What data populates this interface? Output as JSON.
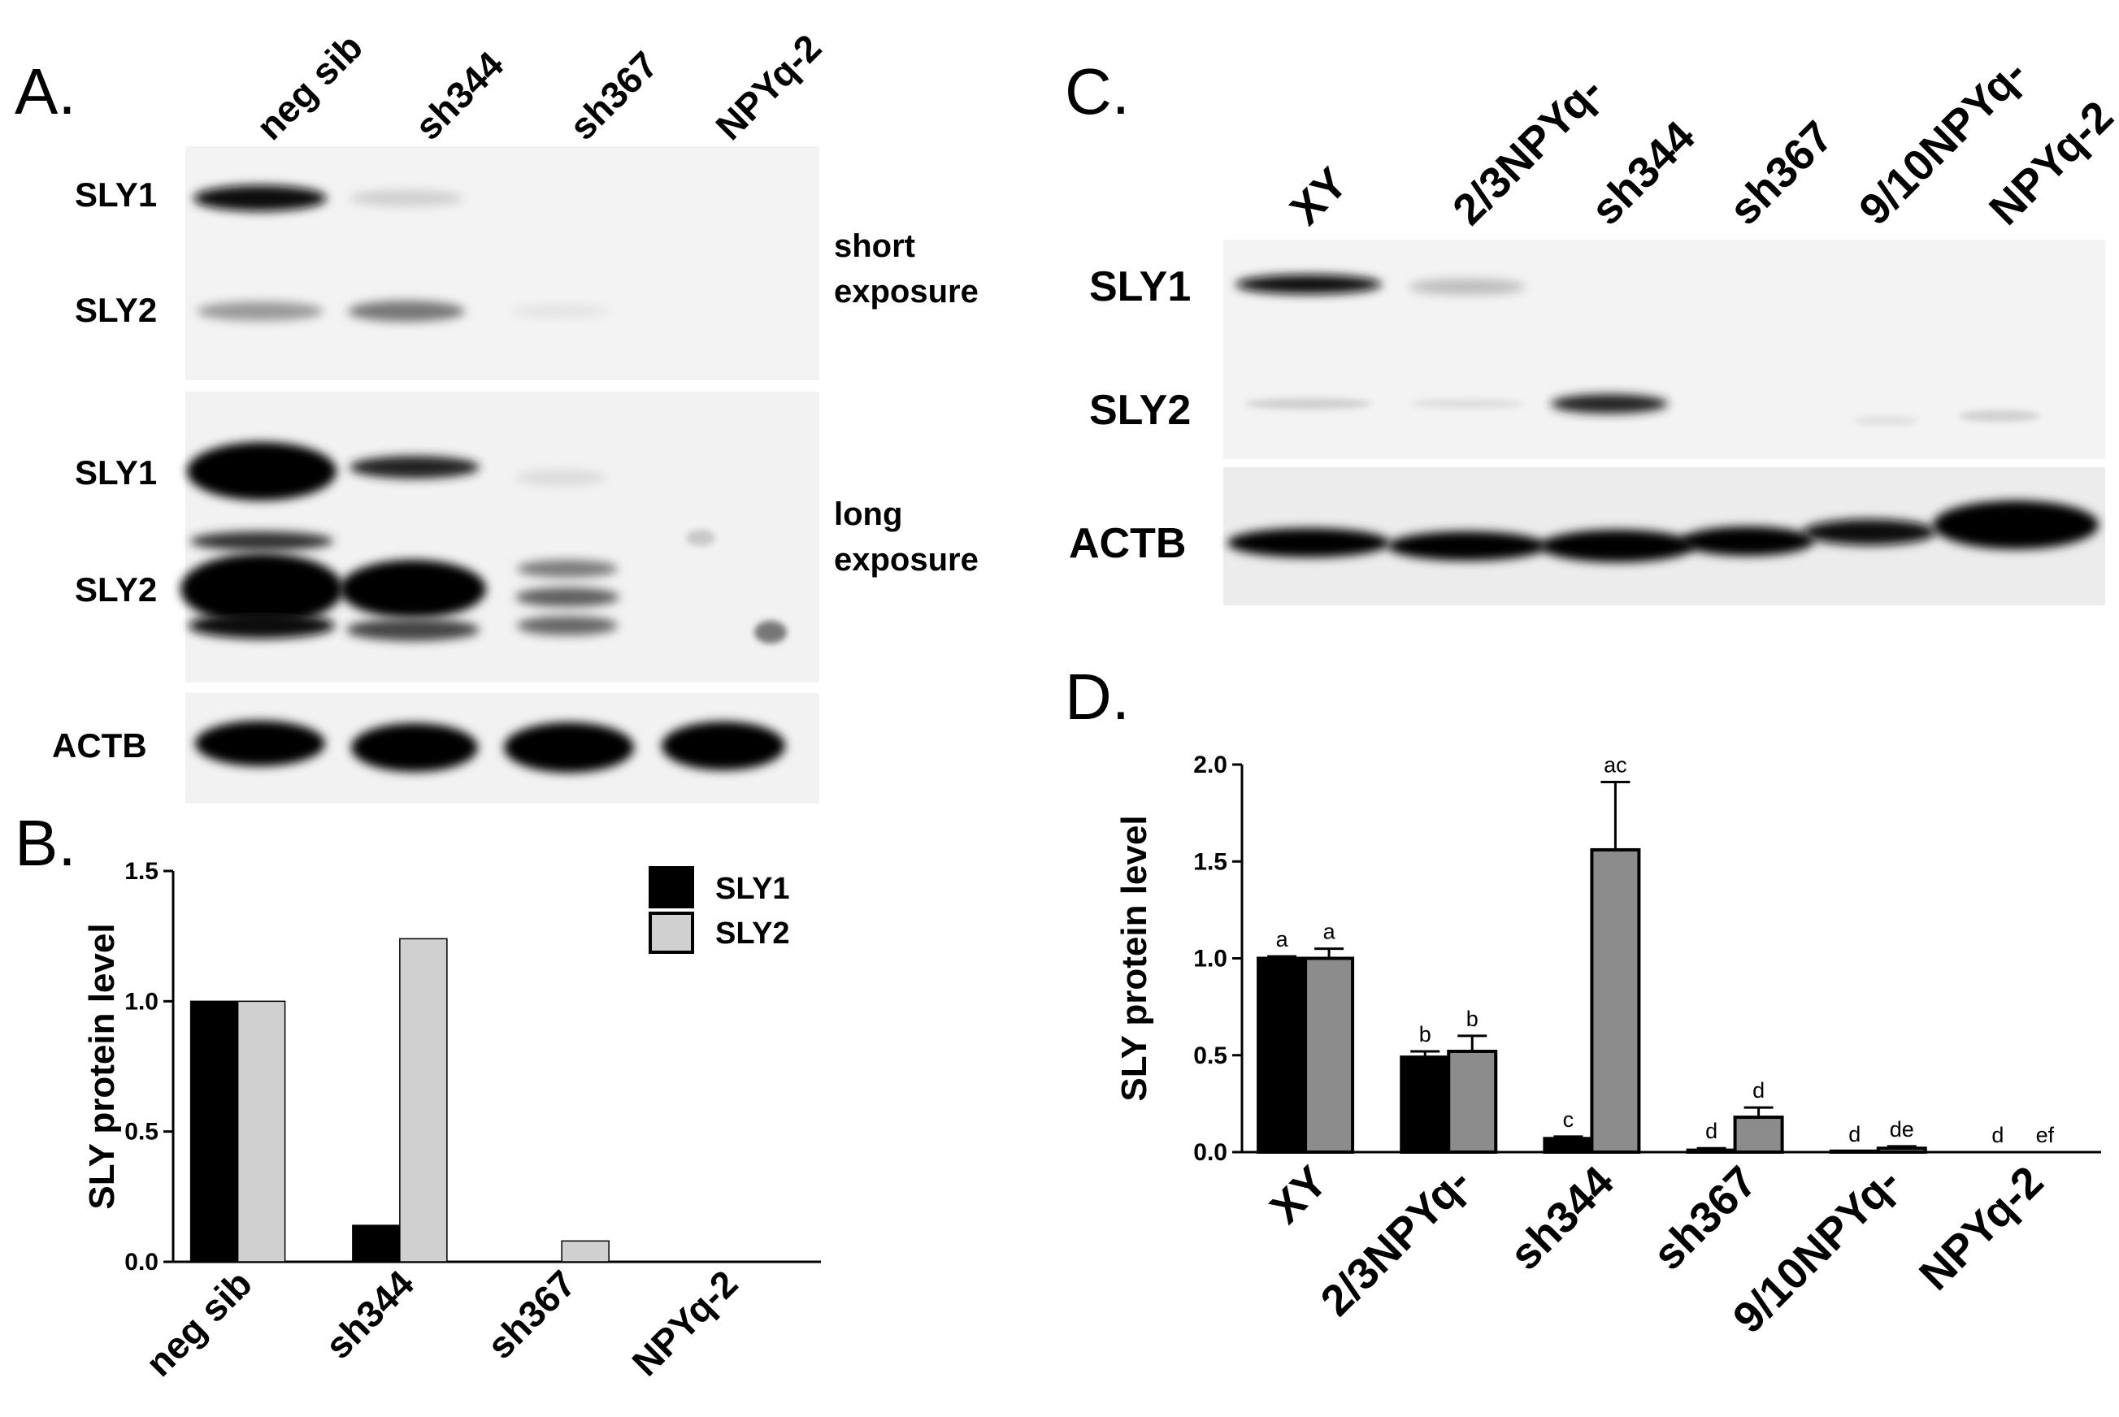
{
  "colors": {
    "sly1": "#000000",
    "sly2_b": "#d0d0d0",
    "sly2_d": "#8c8c8c",
    "blot_bg": "#f2f2f2"
  },
  "panel_a": {
    "letter": "A.",
    "lanes": [
      "neg sib",
      "sh344",
      "sh367",
      "NPYq-2"
    ],
    "short": {
      "bands": [
        "SLY1",
        "SLY2"
      ],
      "exposure": [
        "short",
        "exposure"
      ]
    },
    "long": {
      "bands": [
        "SLY1",
        "SLY2"
      ],
      "exposure": [
        "long",
        "exposure"
      ]
    },
    "loading": "ACTB"
  },
  "panel_c": {
    "letter": "C.",
    "lanes": [
      "XY",
      "2/3NPYq-",
      "sh344",
      "sh367",
      "9/10NPYq-",
      "NPYq-2"
    ],
    "bands": [
      "SLY1",
      "SLY2"
    ],
    "loading": "ACTB"
  },
  "panel_b": {
    "letter": "B."
  },
  "panel_d": {
    "letter": "D."
  },
  "chart_data": [
    {
      "panel": "B.",
      "type": "bar",
      "categories": [
        "neg sib",
        "sh344",
        "sh367",
        "NPYq-2"
      ],
      "series": [
        {
          "name": "SLY1",
          "values": [
            1.0,
            0.14,
            0.0,
            0.0
          ]
        },
        {
          "name": "SLY2",
          "values": [
            1.0,
            1.24,
            0.08,
            0.0
          ]
        }
      ],
      "ylabel": "SLY protein level",
      "ylim": [
        0,
        1.5
      ],
      "yticks": [
        "0.0",
        "0.5",
        "1.0",
        "1.5"
      ],
      "legend": "top-right"
    },
    {
      "panel": "D.",
      "type": "bar",
      "categories": [
        "XY",
        "2/3NPYq-",
        "sh344",
        "sh367",
        "9/10NPYq-",
        "NPYq-2"
      ],
      "series": [
        {
          "name": "SLY1",
          "values": [
            1.0,
            0.49,
            0.07,
            0.01,
            0.005,
            0.0
          ],
          "error": [
            0.01,
            0.03,
            0.01,
            0.01,
            0.0,
            0.0
          ],
          "labels": [
            "a",
            "b",
            "c",
            "d",
            "d",
            "d"
          ]
        },
        {
          "name": "SLY2",
          "values": [
            1.0,
            0.52,
            1.56,
            0.18,
            0.02,
            0.0
          ],
          "error": [
            0.05,
            0.08,
            0.35,
            0.05,
            0.01,
            0.0
          ],
          "labels": [
            "a",
            "b",
            "ac",
            "d",
            "de",
            "ef"
          ]
        }
      ],
      "ylabel": "SLY protein level",
      "ylim": [
        0,
        2.0
      ],
      "yticks": [
        "0.0",
        "0.5",
        "1.0",
        "1.5",
        "2.0"
      ]
    }
  ]
}
